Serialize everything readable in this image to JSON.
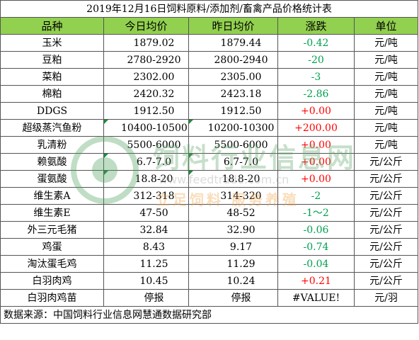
{
  "title": "2019年12月16日饲料原料/添加剂/畜禽产品价格统计表",
  "headers": {
    "name": "品种",
    "today": "今日均价",
    "yesterday": "昨日均价",
    "change": "涨跌",
    "unit": "单位"
  },
  "rows": [
    {
      "name": "玉米",
      "today": "1879.02",
      "yesterday": "1879.44",
      "change": "-0.42",
      "direction": "down",
      "unit": "元/吨"
    },
    {
      "name": "豆粕",
      "today": "2780-2920",
      "yesterday": "2800-2940",
      "change": "-20",
      "direction": "down",
      "unit": "元/吨"
    },
    {
      "name": "菜粕",
      "today": "2302.00",
      "yesterday": "2305.00",
      "change": "-3",
      "direction": "down",
      "unit": "元/吨"
    },
    {
      "name": "棉粕",
      "today": "2420.32",
      "yesterday": "2423.18",
      "change": "-2.86",
      "direction": "down",
      "unit": "元/吨"
    },
    {
      "name": "DDGS",
      "today": "1912.50",
      "yesterday": "1912.50",
      "change": "+0.00",
      "direction": "up",
      "unit": "元/吨"
    },
    {
      "name": "超级蒸汽鱼粉",
      "today": "10400-10500",
      "yesterday": "10200-10300",
      "change": "+200.00",
      "direction": "up",
      "unit": "元/吨"
    },
    {
      "name": "乳清粉",
      "today": "5500-6000",
      "yesterday": "5500-6000",
      "change": "+0.00",
      "direction": "up",
      "unit": "元/吨"
    },
    {
      "name": "赖氨酸",
      "today": "6.7-7.0",
      "yesterday": "6.7-7.0",
      "change": "+0.00",
      "direction": "up",
      "unit": "元/公斤"
    },
    {
      "name": "蛋氨酸",
      "today": "18.8-20",
      "yesterday": "18.8-20",
      "change": "+0.00",
      "direction": "up",
      "unit": "元/公斤"
    },
    {
      "name": "维生素A",
      "today": "312-318",
      "yesterday": "314-320",
      "change": "-2",
      "direction": "down",
      "unit": "元/公斤"
    },
    {
      "name": "维生素E",
      "today": "47-50",
      "yesterday": "48-52",
      "change": "-1～2",
      "direction": "down",
      "unit": "元/公斤"
    },
    {
      "name": "外三元毛猪",
      "today": "32.84",
      "yesterday": "32.90",
      "change": "-0.06",
      "direction": "down",
      "unit": "元/公斤"
    },
    {
      "name": "鸡蛋",
      "today": "8.43",
      "yesterday": "9.17",
      "change": "-0.74",
      "direction": "down",
      "unit": "元/公斤"
    },
    {
      "name": "淘汰蛋毛鸡",
      "today": "11.25",
      "yesterday": "11.29",
      "change": "-0.04",
      "direction": "down",
      "unit": "元/公斤"
    },
    {
      "name": "白羽肉鸡",
      "today": "10.45",
      "yesterday": "10.24",
      "change": "+0.21",
      "direction": "up",
      "unit": "元/公斤"
    },
    {
      "name": "白羽肉鸡苗",
      "today": "停报",
      "yesterday": "停报",
      "change": "#VALUE!",
      "direction": "none",
      "unit": "元/羽"
    }
  ],
  "source": "数据来源：中国饲料行业信息网慧通数据研究部",
  "watermark": {
    "title": "饲料行业信息网",
    "url": "www.feedtrade.com.cn",
    "slogan": "立足饲料 服务养殖"
  },
  "colors": {
    "header_bg": "#92d050",
    "up": "#ff0000",
    "down": "#00a050",
    "grid": "#555555"
  }
}
